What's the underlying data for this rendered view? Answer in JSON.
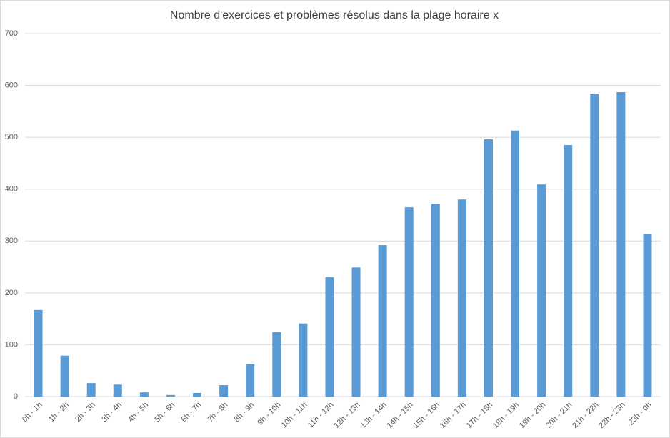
{
  "chart_data": {
    "type": "bar",
    "title": "Nombre d'exercices et problèmes résolus dans la plage horaire x",
    "categories": [
      "0h - 1h",
      "1h - 2h",
      "2h - 3h",
      "3h - 4h",
      "4h - 5h",
      "5h - 6h",
      "6h - 7h",
      "7h - 8h",
      "8h - 9h",
      "9h - 10h",
      "10h - 11h",
      "11h - 12h",
      "12h - 13h",
      "13h - 14h",
      "14h - 15h",
      "15h - 16h",
      "16h - 17h",
      "17h - 18h",
      "18h - 19h",
      "19h - 20h",
      "20h - 21h",
      "21h - 22h",
      "22h - 23h",
      "23h - 0h"
    ],
    "values": [
      167,
      79,
      26,
      23,
      8,
      3,
      7,
      22,
      62,
      124,
      141,
      230,
      249,
      292,
      365,
      372,
      380,
      496,
      513,
      409,
      485,
      584,
      587,
      313
    ],
    "color": "#5b9bd5",
    "ylim": [
      0,
      700
    ],
    "yticks": [
      0,
      100,
      200,
      300,
      400,
      500,
      600,
      700
    ],
    "grid": true
  }
}
